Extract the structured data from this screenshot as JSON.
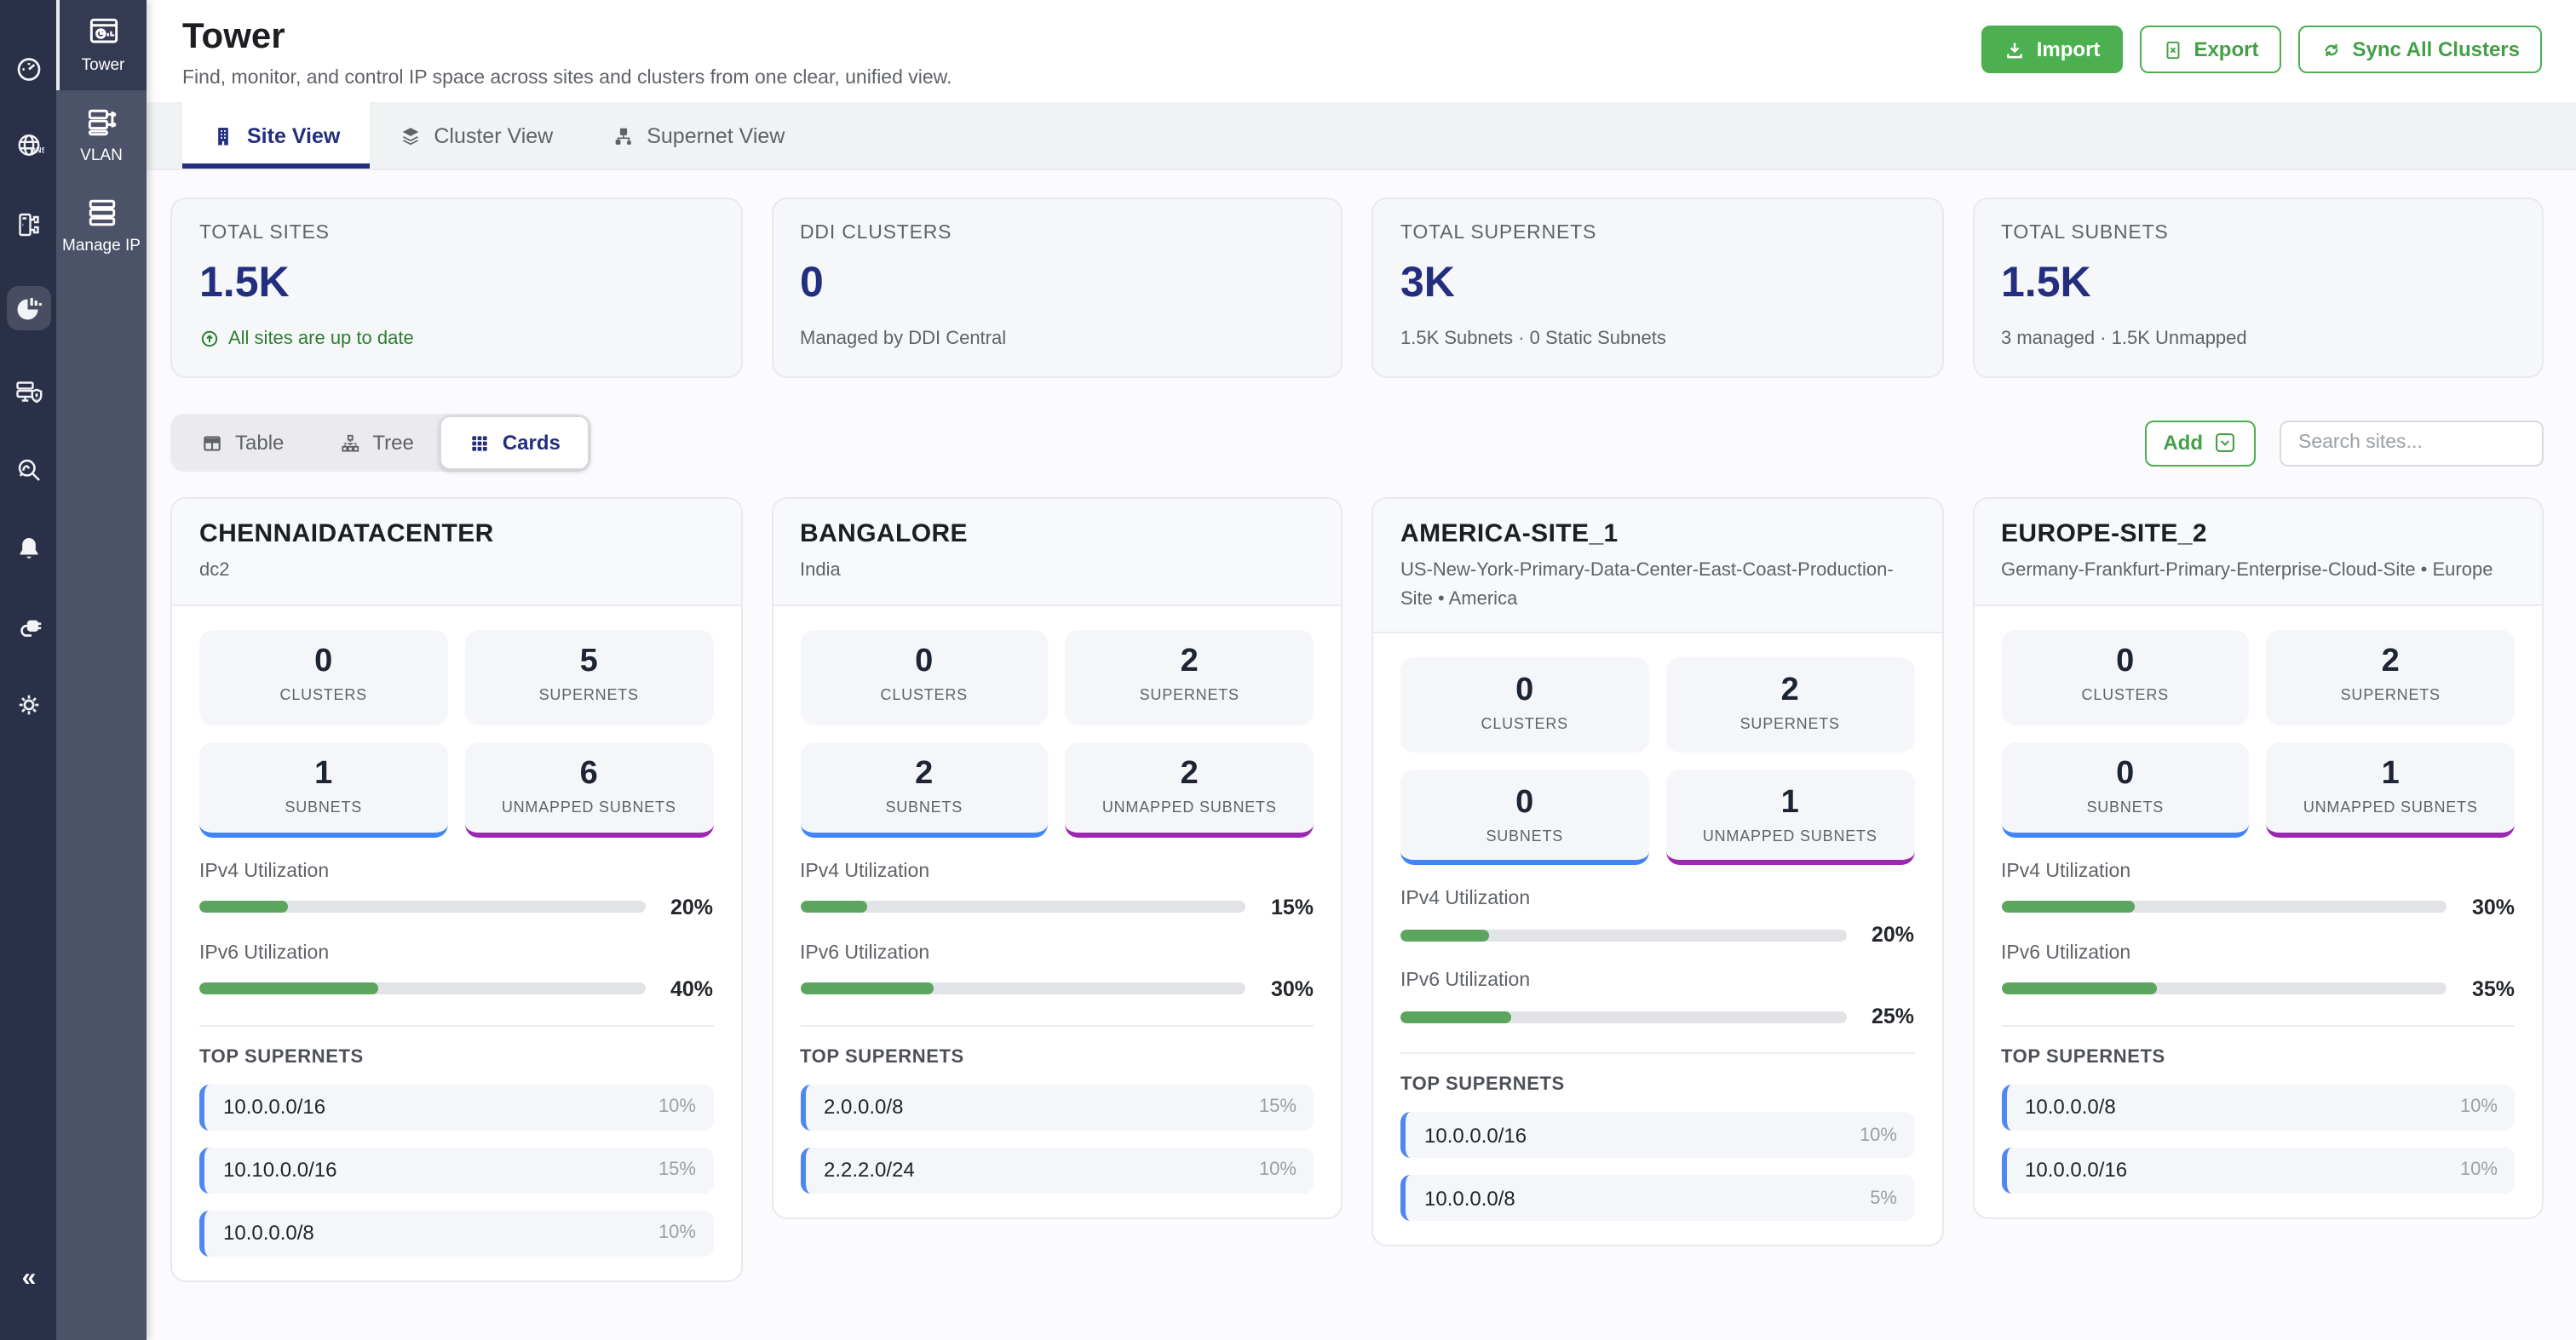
{
  "rail": {
    "icons": [
      "dashboard-gauge",
      "dns-globe",
      "device-topology",
      "analytics-pie",
      "server-alert",
      "search-insights",
      "notifications-bell",
      "integrations-plug",
      "settings-gear"
    ],
    "active_icon": "analytics-pie",
    "collapse": "«"
  },
  "sidebar": {
    "items": [
      {
        "label": "Tower",
        "active": true
      },
      {
        "label": "VLAN",
        "active": false
      },
      {
        "label": "Manage IP",
        "active": false
      }
    ]
  },
  "header": {
    "title": "Tower",
    "subtitle": "Find, monitor, and control IP space across sites and clusters from one clear, unified view.",
    "buttons": {
      "import": "Import",
      "export": "Export",
      "sync": "Sync All Clusters"
    }
  },
  "tabs": [
    {
      "label": "Site View",
      "active": true
    },
    {
      "label": "Cluster View",
      "active": false
    },
    {
      "label": "Supernet View",
      "active": false
    }
  ],
  "stats": [
    {
      "label": "TOTAL SITES",
      "value": "1.5K",
      "sub": "All sites are up to date",
      "status": "success"
    },
    {
      "label": "DDI CLUSTERS",
      "value": "0",
      "sub": "Managed by DDI Central",
      "status": "neutral"
    },
    {
      "label": "TOTAL SUPERNETS",
      "value": "3K",
      "sub": "1.5K Subnets · 0 Static Subnets",
      "status": "neutral"
    },
    {
      "label": "TOTAL SUBNETS",
      "value": "1.5K",
      "sub": "3 managed · 1.5K Unmapped",
      "status": "neutral"
    }
  ],
  "toolbar": {
    "views": [
      {
        "label": "Table",
        "active": false
      },
      {
        "label": "Tree",
        "active": false
      },
      {
        "label": "Cards",
        "active": true
      }
    ],
    "add_label": "Add",
    "search_placeholder": "Search sites..."
  },
  "labels": {
    "clusters": "CLUSTERS",
    "supernets": "SUPERNETS",
    "subnets": "SUBNETS",
    "unmapped": "UNMAPPED SUBNETS",
    "ipv4": "IPv4 Utilization",
    "ipv6": "IPv6 Utilization",
    "top_supernets": "TOP SUPERNETS"
  },
  "site_cards": [
    {
      "name": "CHENNAIDATACENTER",
      "location": "dc2",
      "clusters": 0,
      "supernets": 5,
      "subnets": 1,
      "unmapped": 6,
      "ipv4": 20,
      "ipv6": 40,
      "top": [
        {
          "cidr": "10.0.0.0/16",
          "pct": 10
        },
        {
          "cidr": "10.10.0.0/16",
          "pct": 15
        },
        {
          "cidr": "10.0.0.0/8",
          "pct": 10
        }
      ]
    },
    {
      "name": "BANGALORE",
      "location": "India",
      "clusters": 0,
      "supernets": 2,
      "subnets": 2,
      "unmapped": 2,
      "ipv4": 15,
      "ipv6": 30,
      "top": [
        {
          "cidr": "2.0.0.0/8",
          "pct": 15
        },
        {
          "cidr": "2.2.2.0/24",
          "pct": 10
        }
      ]
    },
    {
      "name": "AMERICA-SITE_1",
      "location": "US-New-York-Primary-Data-Center-East-Coast-Production-Site  •  America",
      "clusters": 0,
      "supernets": 2,
      "subnets": 0,
      "unmapped": 1,
      "ipv4": 20,
      "ipv6": 25,
      "top": [
        {
          "cidr": "10.0.0.0/16",
          "pct": 10
        },
        {
          "cidr": "10.0.0.0/8",
          "pct": 5
        }
      ]
    },
    {
      "name": "EUROPE-SITE_2",
      "location": "Germany-Frankfurt-Primary-Enterprise-Cloud-Site  •  Europe",
      "clusters": 0,
      "supernets": 2,
      "subnets": 0,
      "unmapped": 1,
      "ipv4": 30,
      "ipv6": 35,
      "top": [
        {
          "cidr": "10.0.0.0/8",
          "pct": 10
        },
        {
          "cidr": "10.0.0.0/16",
          "pct": 10
        }
      ]
    }
  ],
  "colors": {
    "accent_navy": "#232e7e",
    "green": "#4caf50",
    "status_green": "#2e7d32",
    "blue_accent": "#4285f4",
    "purple_accent": "#9c27b0",
    "bar_green": "#5ba55f"
  }
}
